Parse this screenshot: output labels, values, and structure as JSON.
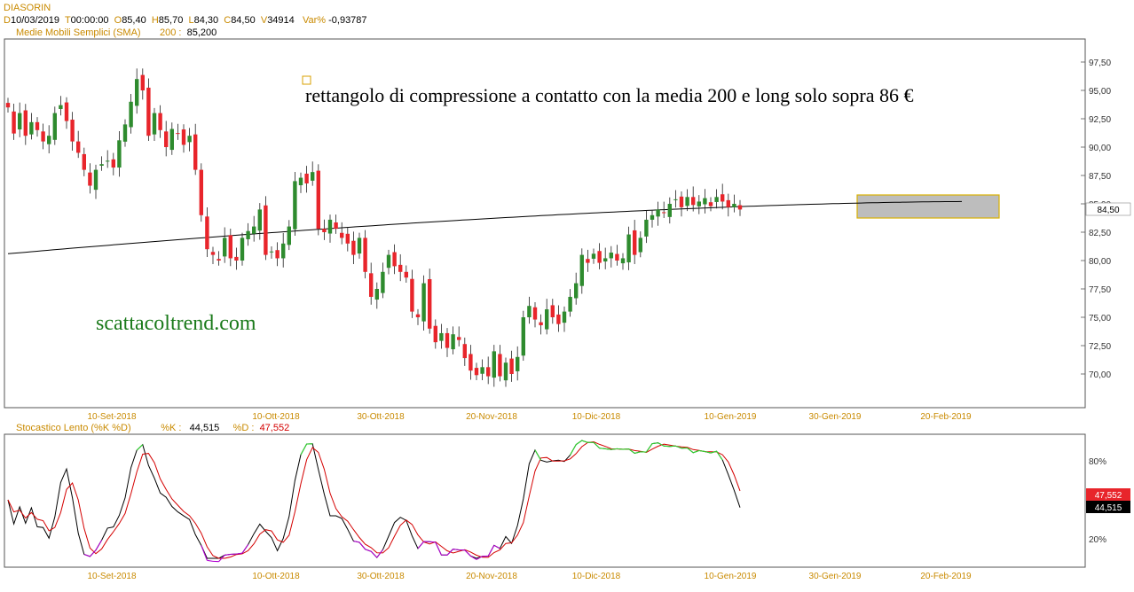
{
  "header": {
    "symbol": "DIASORIN",
    "d_label": "D",
    "date": "10/03/2019",
    "t_label": "T",
    "time": "00:00:00",
    "o_label": "O",
    "open": "85,40",
    "h_label": "H",
    "high": "85,70",
    "l_label": "L",
    "low": "84,30",
    "c_label": "C",
    "close": "84,50",
    "v_label": "V",
    "volume": "34914",
    "var_label": "Var%",
    "var": "-0,93787",
    "sma_label": "Medie Mobili Semplici (SMA)",
    "sma_period": "200 :",
    "sma_value": "85,200"
  },
  "stoch_header": {
    "label": "Stocastico Lento (%K %D)",
    "k_label": "%K :",
    "k_value": "44,515",
    "d_label": "%D :",
    "d_value": "47,552"
  },
  "annotations": {
    "main_text": "rettangolo di compressione a contatto con la media 200 e long solo sopra 86 €",
    "watermark": "scattacoltrend.com"
  },
  "colors": {
    "up": "#2e8b2e",
    "down": "#e8252b",
    "sma": "#000000",
    "k_line": "#000000",
    "d_line": "#d40000",
    "overbought": "#2fd62f",
    "oversold": "#b000d0",
    "box_fill": "#bdbdbd",
    "box_stroke": "#d9b000"
  },
  "chart_data": [
    {
      "type": "candlestick",
      "title": "DIASORIN",
      "x_labels": [
        "10-Set-2018",
        "10-Ott-2018",
        "30-Ott-2018",
        "20-Nov-2018",
        "10-Dic-2018",
        "10-Gen-2019",
        "30-Gen-2019",
        "20-Feb-2019"
      ],
      "y_ticks": [
        "97,50",
        "95,00",
        "92,50",
        "90,00",
        "87,50",
        "85,00",
        "82,50",
        "80,00",
        "77,50",
        "75,00",
        "72,50",
        "70,00"
      ],
      "ylim": [
        67.5,
        99.5
      ],
      "last_price_label": "84,50",
      "close": [
        93.5,
        91.2,
        93.0,
        91.0,
        92.2,
        91.5,
        90.5,
        91.0,
        93.0,
        93.7,
        92.3,
        90.5,
        89.5,
        88.0,
        86.6,
        88.0,
        88.5,
        88.8,
        88.2,
        90.6,
        92.0,
        94.0,
        96.0,
        95.0,
        91.0,
        93.0,
        91.5,
        90.0,
        91.6,
        91.2,
        90.2,
        91.0,
        88.0,
        84.0,
        81.0,
        80.5,
        80.0,
        82.0,
        80.2,
        80.0,
        82.0,
        82.6,
        83.0,
        84.5,
        80.5,
        80.8,
        80.2,
        81.5,
        83.0,
        87.0,
        87.3,
        86.8,
        87.8,
        82.8,
        82.5,
        83.6,
        82.8,
        82.0,
        81.5,
        80.5,
        82.0,
        79.0,
        76.8,
        77.5,
        79.0,
        80.5,
        79.5,
        79.0,
        78.5,
        75.5,
        75.0,
        78.0,
        74.0,
        72.8,
        73.6,
        72.3,
        73.5,
        73.0,
        71.4,
        70.3,
        69.9,
        70.6,
        69.8,
        72.0,
        69.8,
        71.0,
        70.0,
        71.5,
        75.0,
        76.0,
        74.8,
        74.3,
        75.7,
        75.0,
        74.4,
        75.5,
        76.8,
        78.0,
        80.5,
        79.8,
        80.6,
        79.8,
        80.2,
        80.7,
        80.0,
        80.2,
        82.3,
        80.5,
        82.0,
        83.6,
        84.0,
        84.5,
        84.2,
        85.0,
        85.4,
        84.7,
        85.6,
        84.9,
        85.2,
        85.5,
        84.8,
        85.6,
        85.2,
        84.7,
        85.0,
        84.5
      ],
      "sma200": {
        "start": 80.6,
        "end": 85.2
      }
    },
    {
      "type": "line",
      "title": "Stocastico Lento (%K %D)",
      "y_ticks": [
        "80%",
        "20%"
      ],
      "ylim": [
        0,
        100
      ],
      "series": [
        {
          "name": "%K",
          "last_value": "44,515"
        },
        {
          "name": "%D",
          "last_value": "47,552"
        }
      ]
    }
  ]
}
